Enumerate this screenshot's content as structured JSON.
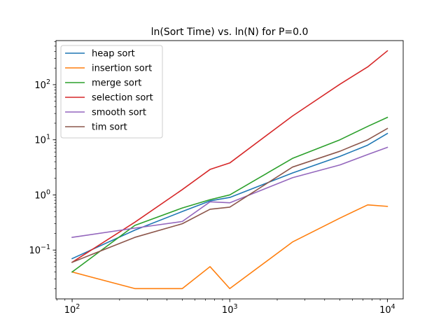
{
  "chart_data": {
    "type": "line",
    "title": "ln(Sort Time) vs. ln(N) for P=0.0",
    "xscale": "log",
    "yscale": "log",
    "xlim": [
      79,
      12600
    ],
    "ylim": [
      0.013,
      630
    ],
    "xticks": [
      {
        "value": 100,
        "base": "10",
        "exp": "2"
      },
      {
        "value": 1000,
        "base": "10",
        "exp": "3"
      },
      {
        "value": 10000,
        "base": "10",
        "exp": "4"
      }
    ],
    "yticks": [
      {
        "value": 0.1,
        "base": "10",
        "exp": "−1"
      },
      {
        "value": 1,
        "base": "10",
        "exp": "0"
      },
      {
        "value": 10,
        "base": "10",
        "exp": "1"
      },
      {
        "value": 100,
        "base": "10",
        "exp": "2"
      }
    ],
    "grid": false,
    "legend_position": "upper-left",
    "x": [
      100,
      250,
      500,
      750,
      1000,
      2500,
      5000,
      7500,
      10000
    ],
    "series": [
      {
        "name": "heap sort",
        "color": "#1f77b4",
        "values": [
          0.07,
          0.23,
          0.5,
          0.78,
          0.9,
          2.5,
          5.0,
          8.0,
          13.0
        ]
      },
      {
        "name": "insertion sort",
        "color": "#ff7f0e",
        "values": [
          0.04,
          0.02,
          0.02,
          0.05,
          0.02,
          0.14,
          0.38,
          0.66,
          0.62
        ]
      },
      {
        "name": "merge sort",
        "color": "#2ca02c",
        "values": [
          0.04,
          0.28,
          0.58,
          0.82,
          1.0,
          4.6,
          10.0,
          17.5,
          25.5
        ]
      },
      {
        "name": "selection sort",
        "color": "#d62728",
        "values": [
          0.06,
          0.32,
          1.25,
          2.9,
          3.8,
          27.0,
          102.0,
          210.0,
          410.0
        ]
      },
      {
        "name": "smooth sort",
        "color": "#9467bd",
        "values": [
          0.17,
          0.25,
          0.33,
          0.75,
          0.72,
          2.05,
          3.5,
          5.4,
          7.3
        ]
      },
      {
        "name": "tim sort",
        "color": "#8c564b",
        "values": [
          0.06,
          0.17,
          0.3,
          0.55,
          0.6,
          3.2,
          6.2,
          10.0,
          16.0
        ]
      }
    ]
  }
}
